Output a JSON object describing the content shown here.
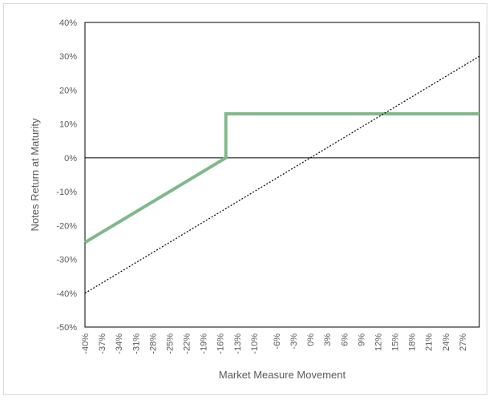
{
  "chart_data": {
    "type": "line",
    "title": "",
    "xlabel": "Market Measure Movement",
    "ylabel": "Notes Return at Maturity",
    "xlim": [
      -40,
      30
    ],
    "ylim": [
      -50,
      40
    ],
    "x_tick_labels": [
      "-40%",
      "-37%",
      "-34%",
      "-31%",
      "-28%",
      "-25%",
      "-22%",
      "-19%",
      "-16%",
      "-13%",
      "-10%",
      "-6%",
      "-3%",
      "0%",
      "3%",
      "6%",
      "9%",
      "12%",
      "15%",
      "18%",
      "21%",
      "24%",
      "27%"
    ],
    "x_tick_values": [
      -40,
      -37,
      -34,
      -31,
      -28,
      -25,
      -22,
      -19,
      -16,
      -13,
      -10,
      -6,
      -3,
      0,
      3,
      6,
      9,
      12,
      15,
      18,
      21,
      24,
      27
    ],
    "y_tick_labels": [
      "40%",
      "30%",
      "20%",
      "10%",
      "0%",
      "-10%",
      "-20%",
      "-30%",
      "-40%",
      "-50%"
    ],
    "y_tick_values": [
      40,
      30,
      20,
      10,
      0,
      -10,
      -20,
      -30,
      -40,
      -50
    ],
    "series": [
      {
        "style": "solid",
        "color": "#7fb98a",
        "points": [
          [
            -40,
            -25
          ],
          [
            -15,
            0
          ],
          [
            -15,
            13
          ],
          [
            30,
            13
          ]
        ]
      },
      {
        "style": "dotted",
        "color": "#000000",
        "points": [
          [
            -40,
            -40
          ],
          [
            30,
            30
          ]
        ]
      }
    ],
    "zero_line": true,
    "grid": false,
    "legend": "none"
  }
}
